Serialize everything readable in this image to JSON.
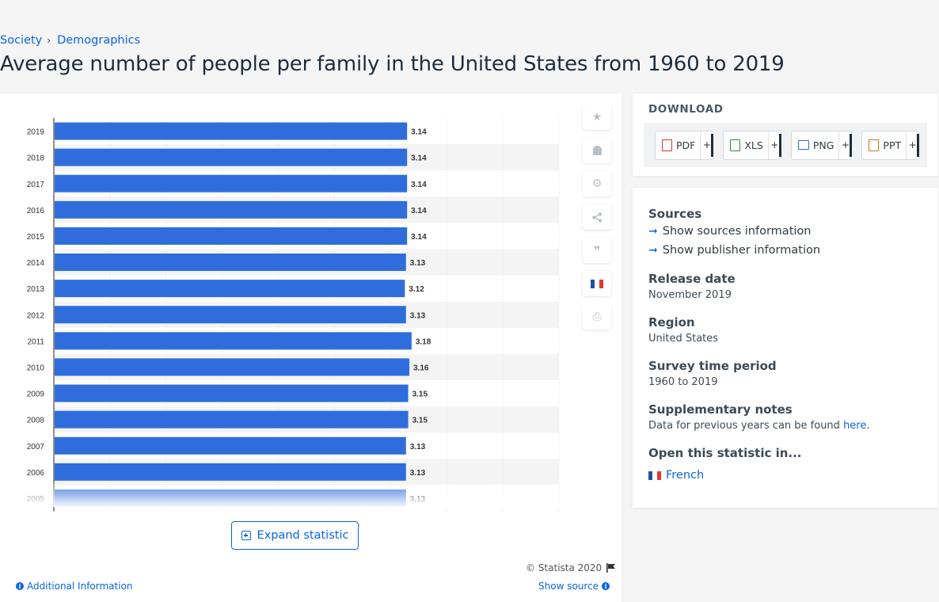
{
  "breadcrumb": {
    "items": [
      "Society",
      "Demographics"
    ],
    "separator": "›"
  },
  "title": "Average number of people per family in the United States from 1960 to 2019",
  "tools": [
    {
      "name": "star-icon",
      "glyph": "★"
    },
    {
      "name": "bell-icon",
      "glyph": "🔔"
    },
    {
      "name": "gear-icon",
      "glyph": "⚙"
    },
    {
      "name": "share-icon",
      "glyph": "⋖"
    },
    {
      "name": "quote-icon",
      "glyph": "❞"
    },
    {
      "name": "french-flag-icon",
      "glyph": ""
    },
    {
      "name": "print-icon",
      "glyph": "⎙"
    }
  ],
  "chart_data": {
    "type": "bar",
    "orientation": "horizontal",
    "categories": [
      "2019",
      "2018",
      "2017",
      "2016",
      "2015",
      "2014",
      "2013",
      "2012",
      "2011",
      "2010",
      "2009",
      "2008",
      "2007",
      "2006",
      "2005"
    ],
    "values": [
      3.14,
      3.14,
      3.14,
      3.14,
      3.14,
      3.13,
      3.12,
      3.13,
      3.18,
      3.16,
      3.15,
      3.15,
      3.13,
      3.13,
      3.13
    ],
    "value_labels": [
      "3.14",
      "3.14",
      "3.14",
      "3.14",
      "3.14",
      "3.13",
      "3.12",
      "3.13",
      "3.18",
      "3.16",
      "3.15",
      "3.15",
      "3.13",
      "3.13",
      "3.13"
    ],
    "xlim": [
      0,
      4.5
    ],
    "bar_color": "#2e6ddb",
    "grid": true
  },
  "expand_label": "Expand statistic",
  "copyright": "© Statista 2020",
  "additional_info": "Additional Information",
  "show_source": "Show source",
  "download": {
    "title": "DOWNLOAD",
    "buttons": [
      {
        "label": "PDF",
        "plus": "+",
        "color": "#d9342b"
      },
      {
        "label": "XLS",
        "plus": "+",
        "color": "#2e8b3a"
      },
      {
        "label": "PNG",
        "plus": "+",
        "color": "#2a6fb3"
      },
      {
        "label": "PPT",
        "plus": "+",
        "color": "#e06b1f"
      }
    ]
  },
  "info": {
    "sources_heading": "Sources",
    "show_sources": "Show sources information",
    "show_publisher": "Show publisher information",
    "release_heading": "Release date",
    "release_value": "November 2019",
    "region_heading": "Region",
    "region_value": "United States",
    "survey_heading": "Survey time period",
    "survey_value": "1960 to 2019",
    "notes_heading": "Supplementary notes",
    "notes_text": "Data for previous years can be found ",
    "notes_link": "here",
    "notes_end": ".",
    "open_heading": "Open this statistic in...",
    "french_link": "French"
  }
}
